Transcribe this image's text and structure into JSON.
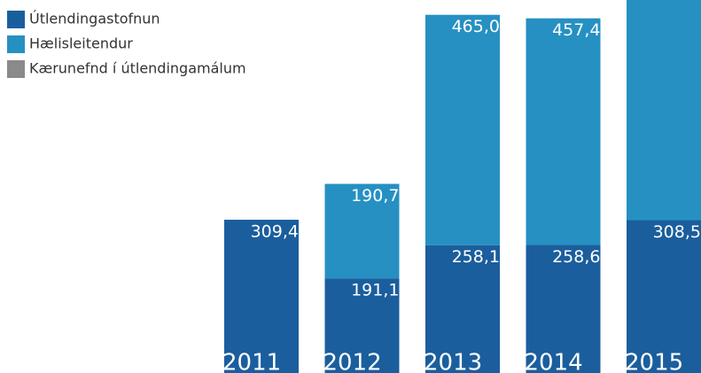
{
  "chart_data": {
    "type": "stacked_bar",
    "categories": [
      "2011",
      "2012",
      "2013",
      "2014",
      "2015"
    ],
    "series": [
      {
        "name": "Útlendingastofnun",
        "color": "#1b5e9d",
        "values": [
          309.4,
          191.1,
          258.1,
          258.6,
          308.5
        ],
        "value_labels": [
          "309,4",
          "191,1",
          "258,1",
          "258,6",
          "308,5"
        ]
      },
      {
        "name": "Hælisleitendur",
        "color": "#2690c2",
        "values": [
          null,
          190.7,
          465.0,
          457.4,
          500
        ],
        "value_labels": [
          null,
          "190,7",
          "465,0",
          "457,4",
          null
        ]
      },
      {
        "name": "Kærunefnd í útlendingamálum",
        "color": "#8a8a8a",
        "values": [
          null,
          null,
          null,
          null,
          null
        ]
      }
    ],
    "ylim": [
      0,
      753
    ]
  }
}
